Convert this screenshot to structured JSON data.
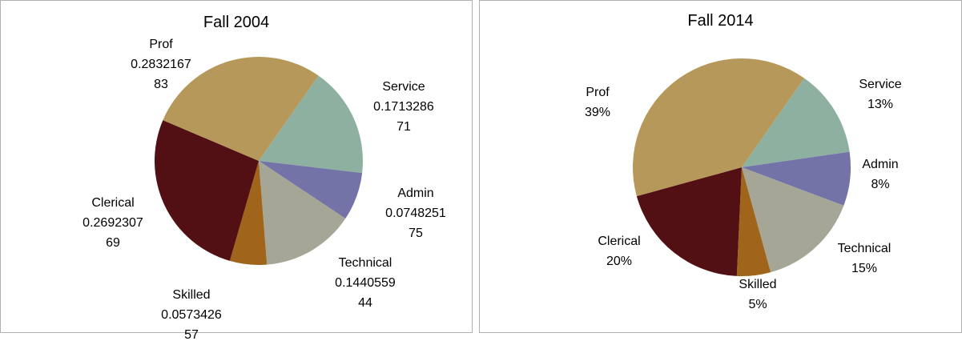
{
  "chart_data": [
    {
      "type": "pie",
      "title": "Fall 2004",
      "categories": [
        "Service",
        "Admin",
        "Technical",
        "Skilled",
        "Clerical",
        "Prof"
      ],
      "values": [
        0.171328671,
        0.074825175,
        0.144055944,
        0.057342657,
        0.269230769,
        0.283216783
      ],
      "colors": [
        "#8eb0a0",
        "#7473a8",
        "#a6a696",
        "#a0641a",
        "#521015",
        "#b5985a"
      ]
    },
    {
      "type": "pie",
      "title": "Fall 2014",
      "categories": [
        "Service",
        "Admin",
        "Technical",
        "Skilled",
        "Clerical",
        "Prof"
      ],
      "values": [
        13,
        8,
        15,
        5,
        20,
        39
      ],
      "value_labels": [
        "13%",
        "8%",
        "15%",
        "5%",
        "20%",
        "39%"
      ],
      "colors": [
        "#8eb0a0",
        "#7473a8",
        "#a6a696",
        "#a0641a",
        "#521015",
        "#b5985a"
      ]
    }
  ]
}
